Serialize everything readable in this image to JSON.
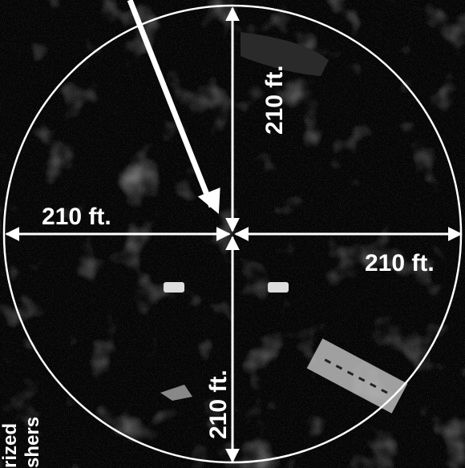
{
  "dimensions": {
    "top": "210 ft.",
    "left": "210 ft.",
    "right": "210 ft.",
    "bottom": "210 ft."
  },
  "side_label": [
    "rized",
    "shers"
  ]
}
